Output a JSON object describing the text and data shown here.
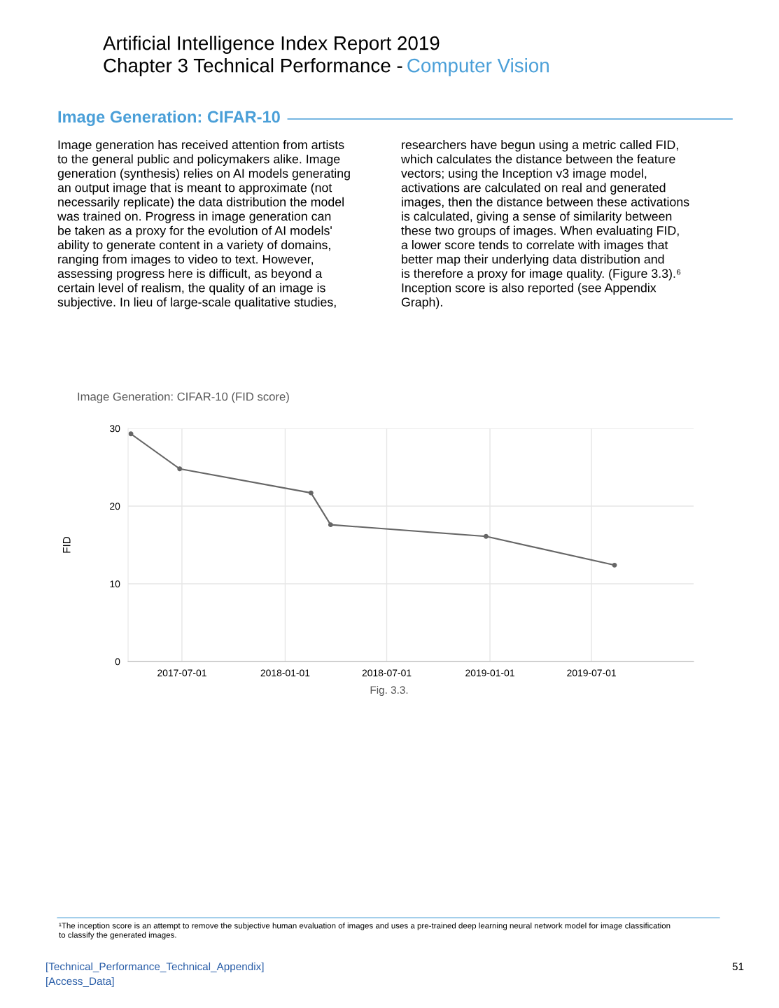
{
  "chart_data": {
    "type": "line",
    "title": "Image Generation: CIFAR-10 (FID score)",
    "ylabel": "FID",
    "x": [
      "2017-04-01",
      "2017-06-27",
      "2018-02-16",
      "2018-03-23",
      "2018-12-25",
      "2019-08-11"
    ],
    "series": [
      {
        "color": "#666666",
        "values": [
          29.3,
          24.8,
          21.7,
          17.6,
          16.1,
          12.4
        ]
      }
    ],
    "xlim": [
      "2017-03-27",
      "2019-12-30"
    ],
    "xticks": [
      "2017-07-01",
      "2018-01-01",
      "2018-07-01",
      "2019-01-01",
      "2019-07-01"
    ],
    "ylim": [
      0,
      30
    ],
    "yticks": [
      0,
      10,
      20,
      30
    ],
    "grid": true,
    "marker": "circle",
    "line_style": "solid",
    "legend": false,
    "annotations": [
      "Artificial Intelligence Index Report 2019",
      "Chapter 3 Technical Performance -",
      "Computer Vision",
      "Image Generation: CIFAR-10",
      "Image generation has received attention from artists\nto the general public and policymakers alike. Image\ngeneration (synthesis) relies on AI models generating\nan output image that is meant to approximate (not\nnecessarily replicate) the data distribution the model\nwas trained on. Progress in image generation can\nbe taken as a proxy for the evolution of AI models'\nability to generate content in a variety of domains,\nranging from images to video to text. However,\nassessing progress here is difficult, as beyond a\ncertain level of realism, the quality of an image is\nsubjective. In lieu of large-scale qualitative studies,",
      "researchers have begun using a metric called FID,\nwhich calculates the distance between the feature\nvectors; using the Inception v3 image model,\nactivations are calculated on real and generated\nimages, then the distance between these activations\nis calculated, giving a sense of similarity between\nthese two groups of images. When evaluating FID,\na lower score tends to correlate with images that\nbetter map their underlying data distribution and\nis therefore a proxy for image quality. (Figure 3.3).⁶\nInception score is also reported (see Appendix\nGraph).",
      "Fig. 3.3.",
      "¹The inception score is an attempt to remove the subjective human evaluation of images and uses a pre-trained deep learning neural network model for image classification\nto classify the generated images.",
      "[Technical_Performance_Technical_Appendix]",
      "[Access_Data]",
      "51"
    ]
  }
}
